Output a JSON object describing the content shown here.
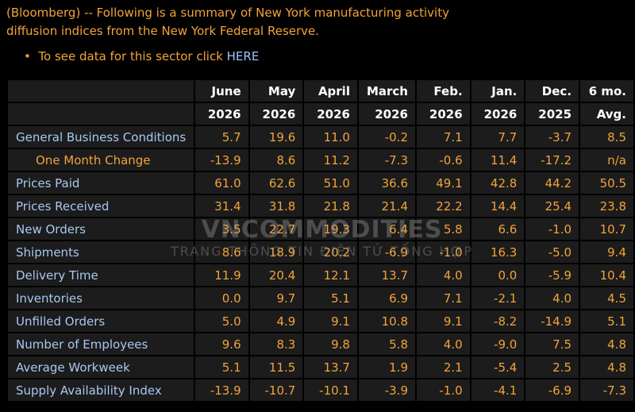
{
  "intro": {
    "lines": [
      "(Bloomberg) -- Following is a summary of New York manufacturing activity",
      "diffusion indices from the New York Federal Reserve."
    ],
    "bullet": "To see data for this sector click ",
    "link": "HERE"
  },
  "table": {
    "columns": [
      {
        "month": "June",
        "year": "2026"
      },
      {
        "month": "May",
        "year": "2026"
      },
      {
        "month": "April",
        "year": "2026"
      },
      {
        "month": "March",
        "year": "2026"
      },
      {
        "month": "Feb.",
        "year": "2026"
      },
      {
        "month": "Jan.",
        "year": "2026"
      },
      {
        "month": "Dec.",
        "year": "2025"
      },
      {
        "month": "6 mo.",
        "year": "Avg."
      }
    ],
    "rows": [
      {
        "label": "General Business Conditions",
        "values": [
          "5.7",
          "19.6",
          "11.0",
          "-0.2",
          "7.1",
          "7.7",
          "-3.7",
          "8.5"
        ]
      },
      {
        "label": "One Month Change",
        "sub": true,
        "values": [
          "-13.9",
          "8.6",
          "11.2",
          "-7.3",
          "-0.6",
          "11.4",
          "-17.2",
          "n/a"
        ]
      },
      {
        "label": "Prices Paid",
        "values": [
          "61.0",
          "62.6",
          "51.0",
          "36.6",
          "49.1",
          "42.8",
          "44.2",
          "50.5"
        ]
      },
      {
        "label": "Prices Received",
        "values": [
          "31.4",
          "31.8",
          "21.8",
          "21.4",
          "22.2",
          "14.4",
          "25.4",
          "23.8"
        ]
      },
      {
        "label": "New Orders",
        "values": [
          "3.5",
          "22.7",
          "19.3",
          "6.4",
          "5.8",
          "6.6",
          "-1.0",
          "10.7"
        ]
      },
      {
        "label": "Shipments",
        "values": [
          "8.6",
          "18.9",
          "20.2",
          "-6.9",
          "-1.0",
          "16.3",
          "-5.0",
          "9.4"
        ]
      },
      {
        "label": "Delivery Time",
        "values": [
          "11.9",
          "20.4",
          "12.1",
          "13.7",
          "4.0",
          "0.0",
          "-5.9",
          "10.4"
        ]
      },
      {
        "label": "Inventories",
        "values": [
          "0.0",
          "9.7",
          "5.1",
          "6.9",
          "7.1",
          "-2.1",
          "4.0",
          "4.5"
        ]
      },
      {
        "label": "Unfilled Orders",
        "values": [
          "5.0",
          "4.9",
          "9.1",
          "10.8",
          "9.1",
          "-8.2",
          "-14.9",
          "5.1"
        ]
      },
      {
        "label": "Number of Employees",
        "values": [
          "9.6",
          "8.3",
          "9.8",
          "5.8",
          "4.0",
          "-9.0",
          "7.5",
          "4.8"
        ]
      },
      {
        "label": "Average Workweek",
        "values": [
          "5.1",
          "11.5",
          "13.7",
          "1.9",
          "2.1",
          "-5.4",
          "2.5",
          "4.8"
        ]
      },
      {
        "label": "Supply Availability Index",
        "values": [
          "-13.9",
          "-10.7",
          "-10.1",
          "-3.9",
          "-1.0",
          "-4.1",
          "-6.9",
          "-7.3"
        ]
      }
    ]
  },
  "watermark": {
    "brand": "VNCOMMODITIES",
    "tagline": "TRANG THÔNG TIN ĐIỆN TỬ TỔNG HỢP"
  }
}
